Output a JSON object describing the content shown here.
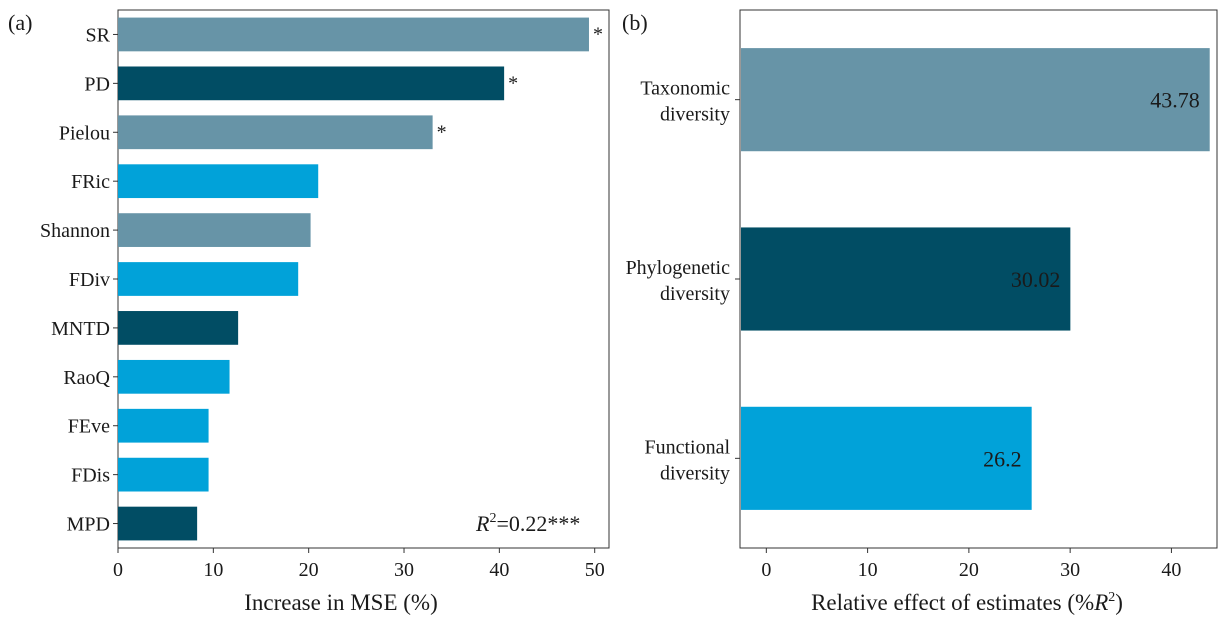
{
  "chart_data": [
    {
      "panel_label": "(a)",
      "type": "bar",
      "orientation": "horizontal",
      "categories": [
        "SR",
        "PD",
        "Pielou",
        "FRic",
        "Shannon",
        "FDiv",
        "MNTD",
        "RaoQ",
        "FEve",
        "FDis",
        "MPD"
      ],
      "values": [
        49.4,
        40.5,
        33.0,
        21.0,
        20.2,
        18.9,
        12.6,
        11.7,
        9.5,
        9.5,
        8.3
      ],
      "significance": [
        "*",
        "*",
        "*",
        "",
        "",
        "",
        "",
        "",
        "",
        "",
        ""
      ],
      "groups": [
        "taxonomic",
        "phylogenetic",
        "taxonomic",
        "functional",
        "taxonomic",
        "functional",
        "phylogenetic",
        "functional",
        "functional",
        "functional",
        "phylogenetic"
      ],
      "xlabel": "Increase in MSE (%)",
      "ylabel": "",
      "xlim": [
        0,
        51.5
      ],
      "xticks": [
        "0",
        "10",
        "20",
        "30",
        "40",
        "50"
      ],
      "annotation": {
        "prefix": "R",
        "sup": "2",
        "suffix": "=0.22***"
      },
      "grid": false
    },
    {
      "panel_label": "(b)",
      "type": "bar",
      "orientation": "horizontal",
      "categories": [
        {
          "line1": "Taxonomic",
          "line2": "diversity"
        },
        {
          "line1": "Phylogenetic",
          "line2": "diversity"
        },
        {
          "line1": "Functional",
          "line2": "diversity"
        }
      ],
      "values": [
        43.78,
        30.02,
        26.2
      ],
      "data_labels": [
        "43.78",
        "30.02",
        "26.2"
      ],
      "groups": [
        "taxonomic",
        "phylogenetic",
        "functional"
      ],
      "xlabel": {
        "prefix": "Relative effect of estimates (%",
        "italic": "R",
        "sup": "2",
        "suffix": ")"
      },
      "ylabel": "",
      "xlim": [
        -2.6,
        44.5
      ],
      "xticks": [
        "0",
        "10",
        "20",
        "30",
        "40"
      ],
      "grid": false
    }
  ],
  "colors": {
    "taxonomic": "#6794a7",
    "phylogenetic": "#014d64",
    "functional": "#01a2d9"
  }
}
